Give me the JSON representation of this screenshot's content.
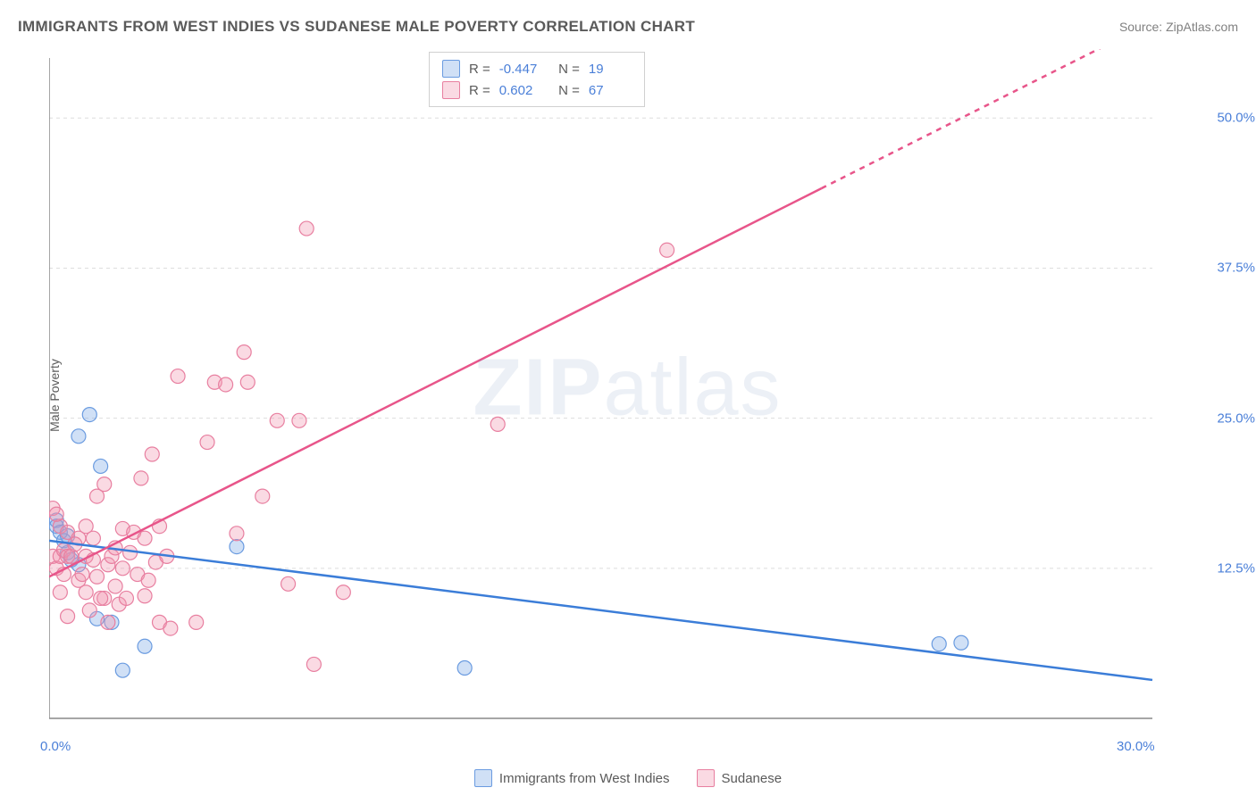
{
  "header": {
    "title": "IMMIGRANTS FROM WEST INDIES VS SUDANESE MALE POVERTY CORRELATION CHART",
    "source": "Source: ZipAtlas.com"
  },
  "watermark": {
    "part1": "ZIP",
    "part2": "atlas"
  },
  "chart": {
    "type": "scatter",
    "background_color": "#ffffff",
    "grid_color": "#dddddd",
    "axis_color": "#888888",
    "ylabel": "Male Poverty",
    "label_fontsize": 14,
    "tick_color": "#4a7fd8",
    "xlim": [
      0,
      30
    ],
    "ylim": [
      0,
      55
    ],
    "xticks": [
      {
        "value": 0,
        "label": "0.0%"
      },
      {
        "value": 30,
        "label": "30.0%"
      }
    ],
    "yticks": [
      {
        "value": 12.5,
        "label": "12.5%"
      },
      {
        "value": 25.0,
        "label": "25.0%"
      },
      {
        "value": 37.5,
        "label": "37.5%"
      },
      {
        "value": 50.0,
        "label": "50.0%"
      }
    ],
    "series": [
      {
        "id": "west_indies",
        "label": "Immigrants from West Indies",
        "fill": "rgba(120,165,230,0.35)",
        "stroke": "#6a9be0",
        "line_color": "#3b7dd8",
        "line_width": 2.5,
        "marker_radius": 8,
        "stats": {
          "R": "-0.447",
          "N": "19"
        },
        "trend": {
          "x1": 0,
          "y1": 14.8,
          "x2": 30,
          "y2": 3.2,
          "dash_from_x": null
        },
        "points": [
          [
            0.2,
            16.5
          ],
          [
            0.2,
            16.0
          ],
          [
            0.3,
            15.5
          ],
          [
            0.4,
            14.8
          ],
          [
            0.8,
            23.5
          ],
          [
            1.1,
            25.3
          ],
          [
            1.4,
            21.0
          ],
          [
            1.3,
            8.3
          ],
          [
            1.7,
            8.0
          ],
          [
            2.6,
            6.0
          ],
          [
            0.5,
            15.2
          ],
          [
            0.5,
            13.8
          ],
          [
            5.1,
            14.3
          ],
          [
            2.0,
            4.0
          ],
          [
            11.3,
            4.2
          ],
          [
            0.6,
            13.2
          ],
          [
            0.8,
            12.8
          ],
          [
            24.2,
            6.2
          ],
          [
            24.8,
            6.3
          ]
        ]
      },
      {
        "id": "sudanese",
        "label": "Sudanese",
        "fill": "rgba(240,150,175,0.35)",
        "stroke": "#e87fa0",
        "line_color": "#e8558a",
        "line_width": 2.5,
        "marker_radius": 8,
        "stats": {
          "R": "0.602",
          "N": "67"
        },
        "trend": {
          "x1": 0,
          "y1": 11.8,
          "x2": 30,
          "y2": 58.0,
          "dash_from_x": 21
        },
        "points": [
          [
            0.1,
            17.5
          ],
          [
            0.1,
            13.5
          ],
          [
            0.2,
            12.5
          ],
          [
            0.3,
            13.5
          ],
          [
            0.3,
            16.0
          ],
          [
            0.3,
            10.5
          ],
          [
            0.4,
            14.0
          ],
          [
            0.4,
            12.0
          ],
          [
            0.5,
            8.5
          ],
          [
            0.5,
            15.5
          ],
          [
            0.5,
            13.5
          ],
          [
            0.6,
            13.5
          ],
          [
            0.8,
            11.5
          ],
          [
            0.8,
            15.0
          ],
          [
            0.9,
            12.0
          ],
          [
            1.0,
            13.5
          ],
          [
            1.0,
            10.5
          ],
          [
            1.0,
            16.0
          ],
          [
            1.1,
            9.0
          ],
          [
            1.2,
            13.2
          ],
          [
            1.2,
            15.0
          ],
          [
            1.3,
            11.8
          ],
          [
            1.3,
            18.5
          ],
          [
            1.5,
            10.0
          ],
          [
            1.5,
            19.5
          ],
          [
            1.6,
            12.8
          ],
          [
            1.6,
            8.0
          ],
          [
            1.7,
            13.5
          ],
          [
            1.8,
            11.0
          ],
          [
            1.8,
            14.2
          ],
          [
            1.9,
            9.5
          ],
          [
            2.0,
            12.5
          ],
          [
            2.0,
            15.8
          ],
          [
            2.1,
            10.0
          ],
          [
            2.2,
            13.8
          ],
          [
            2.3,
            15.5
          ],
          [
            2.4,
            12.0
          ],
          [
            2.5,
            20.0
          ],
          [
            2.6,
            10.2
          ],
          [
            2.6,
            15.0
          ],
          [
            2.7,
            11.5
          ],
          [
            2.8,
            22.0
          ],
          [
            2.9,
            13.0
          ],
          [
            3.0,
            16.0
          ],
          [
            3.0,
            8.0
          ],
          [
            3.2,
            13.5
          ],
          [
            3.3,
            7.5
          ],
          [
            3.5,
            28.5
          ],
          [
            4.0,
            8.0
          ],
          [
            4.3,
            23.0
          ],
          [
            4.5,
            28.0
          ],
          [
            4.8,
            27.8
          ],
          [
            5.1,
            15.4
          ],
          [
            5.3,
            30.5
          ],
          [
            5.4,
            28.0
          ],
          [
            5.8,
            18.5
          ],
          [
            6.2,
            24.8
          ],
          [
            6.5,
            11.2
          ],
          [
            0.2,
            17.0
          ],
          [
            6.8,
            24.8
          ],
          [
            7.0,
            40.8
          ],
          [
            7.2,
            4.5
          ],
          [
            8.0,
            10.5
          ],
          [
            12.2,
            24.5
          ],
          [
            16.8,
            39.0
          ],
          [
            1.4,
            10.0
          ],
          [
            0.7,
            14.5
          ]
        ]
      }
    ],
    "bottom_legend": [
      {
        "series": "west_indies",
        "label": "Immigrants from West Indies"
      },
      {
        "series": "sudanese",
        "label": "Sudanese"
      }
    ]
  }
}
